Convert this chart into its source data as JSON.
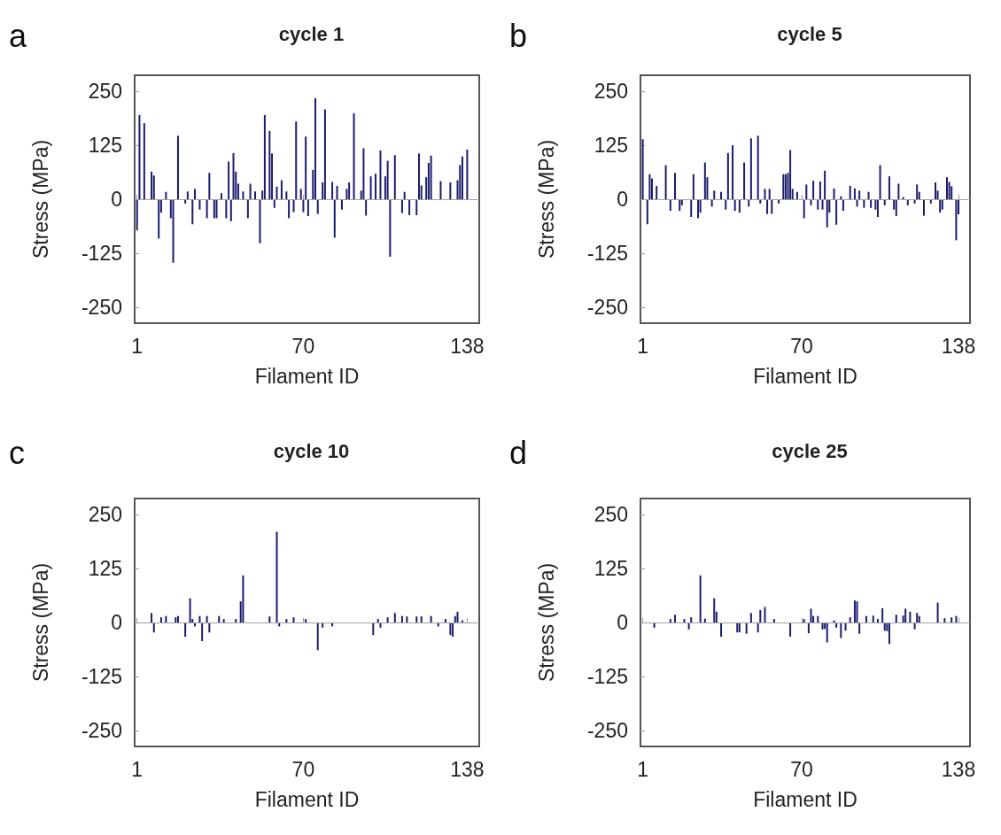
{
  "chart_data": [
    {
      "type": "bar",
      "title": "cycle 1",
      "xlabel": "Filament ID",
      "ylabel": "Stress (MPa)",
      "annotations": [
        "a"
      ],
      "color": "#1c1c6e",
      "grid": false,
      "xlim": [
        0,
        143
      ],
      "xticks": [
        1,
        70,
        138
      ],
      "ylim": [
        -287,
        287
      ],
      "yticks": [
        -250,
        -125,
        0,
        125,
        250
      ],
      "ref_lines": [
        {
          "axis": "y",
          "value": 0,
          "label": null,
          "color": "#a0a0a0"
        }
      ],
      "x": [
        1,
        2,
        4,
        7,
        8,
        10,
        11,
        13,
        15,
        16,
        18,
        21,
        22,
        24,
        25,
        27,
        30,
        31,
        33,
        34,
        36,
        38,
        39,
        40,
        41,
        42,
        43,
        45,
        47,
        48,
        50,
        52,
        53,
        54,
        56,
        57,
        58,
        59,
        61,
        63,
        64,
        66,
        67,
        69,
        70,
        71,
        72,
        74,
        75,
        76,
        78,
        79,
        82,
        83,
        84,
        86,
        88,
        89,
        91,
        94,
        95,
        96,
        98,
        100,
        102,
        104,
        105,
        106,
        108,
        111,
        112,
        114,
        117,
        118,
        119,
        121,
        122,
        123,
        127,
        131,
        134,
        135,
        136,
        138
      ],
      "values": [
        -72,
        195,
        176,
        64,
        55,
        -91,
        -31,
        17,
        -44,
        -147,
        147,
        -10,
        18,
        -58,
        24,
        -24,
        -44,
        61,
        -44,
        -44,
        14,
        -44,
        87,
        -51,
        107,
        64,
        36,
        18,
        -44,
        36,
        18,
        -102,
        20,
        195,
        158,
        106,
        -20,
        29,
        44,
        18,
        -44,
        -30,
        180,
        24,
        -30,
        145,
        -39,
        68,
        234,
        -34,
        39,
        208,
        40,
        -89,
        31,
        -24,
        24,
        39,
        199,
        20,
        118,
        -38,
        53,
        59,
        113,
        53,
        89,
        -133,
        102,
        -32,
        17,
        -37,
        -37,
        106,
        32,
        51,
        84,
        101,
        42,
        39,
        44,
        79,
        99,
        115
      ]
    },
    {
      "type": "bar",
      "title": "cycle 5",
      "xlabel": "Filament ID",
      "ylabel": "Stress (MPa)",
      "annotations": [
        "b"
      ],
      "color": "#1c1c6e",
      "grid": false,
      "xlim": [
        0,
        143
      ],
      "xticks": [
        1,
        70,
        138
      ],
      "ylim": [
        -287,
        287
      ],
      "yticks": [
        -250,
        -125,
        0,
        125,
        250
      ],
      "ref_lines": [
        {
          "axis": "y",
          "value": 0,
          "label": null,
          "color": "#a0a0a0"
        }
      ],
      "x": [
        1,
        3,
        4,
        5,
        7,
        11,
        13,
        15,
        17,
        18,
        22,
        23,
        25,
        26,
        28,
        29,
        31,
        32,
        35,
        37,
        38,
        40,
        41,
        43,
        45,
        47,
        48,
        51,
        52,
        54,
        55,
        56,
        57,
        60,
        62,
        63,
        64,
        65,
        66,
        68,
        71,
        72,
        74,
        75,
        77,
        78,
        79,
        80,
        81,
        82,
        84,
        85,
        87,
        88,
        91,
        93,
        94,
        95,
        97,
        99,
        100,
        102,
        103,
        104,
        106,
        108,
        110,
        111,
        112,
        114,
        116,
        119,
        120,
        121,
        123,
        126,
        128,
        129,
        130,
        131,
        133,
        134,
        135,
        137,
        138
      ],
      "values": [
        139,
        -58,
        58,
        48,
        31,
        79,
        -27,
        61,
        -27,
        -14,
        -41,
        58,
        -44,
        -31,
        85,
        51,
        -17,
        20,
        17,
        -24,
        107,
        125,
        -27,
        -31,
        85,
        -17,
        141,
        147,
        -10,
        24,
        -34,
        24,
        -34,
        -10,
        58,
        58,
        61,
        114,
        24,
        17,
        -44,
        34,
        -14,
        43,
        -24,
        41,
        -24,
        66,
        -65,
        -31,
        25,
        -59,
        7,
        -27,
        31,
        25,
        -17,
        20,
        -20,
        17,
        -20,
        -24,
        -41,
        79,
        -14,
        53,
        -24,
        -39,
        36,
        5,
        -14,
        -10,
        34,
        17,
        -38,
        -10,
        39,
        20,
        -31,
        -24,
        51,
        40,
        30,
        -95,
        -35
      ]
    },
    {
      "type": "bar",
      "title": "cycle 10",
      "xlabel": "Filament ID",
      "ylabel": "Stress (MPa)",
      "annotations": [
        "c"
      ],
      "color": "#1c1c6e",
      "grid": false,
      "xlim": [
        0,
        143
      ],
      "xticks": [
        1,
        70,
        138
      ],
      "ylim": [
        -287,
        287
      ],
      "yticks": [
        -250,
        -125,
        0,
        125,
        250
      ],
      "ref_lines": [
        {
          "axis": "y",
          "value": 0,
          "label": null,
          "color": "#a0a0a0"
        }
      ],
      "x": [
        7,
        8,
        11,
        13,
        17,
        18,
        21,
        23,
        24,
        25,
        27,
        28,
        30,
        31,
        35,
        37,
        42,
        44,
        45,
        52,
        56,
        59,
        60,
        63,
        66,
        71,
        76,
        78,
        82,
        99,
        101,
        102,
        105,
        108,
        111,
        113,
        117,
        119,
        123,
        126,
        129,
        131,
        132,
        133,
        134,
        136
      ],
      "values": [
        22,
        -23,
        12,
        15,
        12,
        15,
        -33,
        56,
        8,
        -9,
        15,
        -43,
        15,
        -23,
        15,
        8,
        8,
        49,
        109,
        null,
        14,
        210,
        -9,
        8,
        12,
        8,
        -64,
        -12,
        -9,
        -29,
        8,
        -12,
        12,
        22,
        15,
        14,
        14,
        14,
        15,
        -9,
        8,
        -29,
        -33,
        15,
        25,
        5
      ]
    },
    {
      "type": "bar",
      "title": "cycle 25",
      "xlabel": "Filament ID",
      "ylabel": "Stress (MPa)",
      "annotations": [
        "d"
      ],
      "color": "#1c1c6e",
      "grid": false,
      "xlim": [
        0,
        143
      ],
      "xticks": [
        1,
        70,
        138
      ],
      "ylim": [
        -287,
        287
      ],
      "yticks": [
        -250,
        -125,
        0,
        125,
        250
      ],
      "ref_lines": [
        {
          "axis": "y",
          "value": 0,
          "label": null,
          "color": "#a0a0a0"
        }
      ],
      "x": [
        6,
        8,
        13,
        15,
        19,
        21,
        22,
        26,
        28,
        32,
        33,
        35,
        36,
        42,
        43,
        46,
        48,
        51,
        52,
        54,
        57,
        58,
        65,
        71,
        73,
        74,
        75,
        77,
        79,
        80,
        81,
        84,
        85,
        87,
        89,
        91,
        93,
        94,
        95,
        98,
        99,
        101,
        103,
        105,
        106,
        107,
        108,
        111,
        114,
        115,
        117,
        119,
        120,
        121,
        125,
        129,
        132,
        135,
        137
      ],
      "values": [
        -12,
        null,
        8,
        18,
        8,
        -16,
        12,
        109,
        9,
        56,
        25,
        -33,
        null,
        -23,
        -23,
        -26,
        22,
        -23,
        29,
        36,
        null,
        8,
        -33,
        8,
        -25,
        32,
        15,
        15,
        -16,
        -15,
        -46,
        5,
        -12,
        -36,
        -19,
        12,
        51,
        49,
        -26,
        15,
        null,
        16,
        8,
        33,
        -19,
        -20,
        -50,
        18,
        16,
        32,
        25,
        -16,
        22,
        15,
        null,
        46,
        10,
        12,
        15
      ]
    }
  ]
}
